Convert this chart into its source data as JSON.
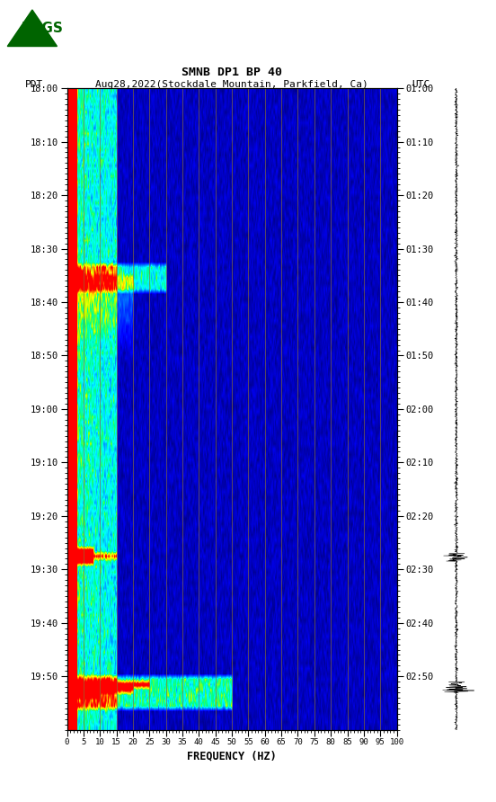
{
  "title_line1": "SMNB DP1 BP 40",
  "title_line2": "PDT   Aug28,2022(Stockdale Mountain, Parkfield, Ca)       UTC",
  "xlabel": "FREQUENCY (HZ)",
  "freq_ticks": [
    0,
    5,
    10,
    15,
    20,
    25,
    30,
    35,
    40,
    45,
    50,
    55,
    60,
    65,
    70,
    75,
    80,
    85,
    90,
    95,
    100
  ],
  "freq_min": 0,
  "freq_max": 100,
  "time_labels_left": [
    "18:00",
    "18:10",
    "18:20",
    "18:30",
    "18:40",
    "18:50",
    "19:00",
    "19:10",
    "19:20",
    "19:30",
    "19:40",
    "19:50"
  ],
  "time_labels_right": [
    "01:00",
    "01:10",
    "01:20",
    "01:30",
    "01:40",
    "01:50",
    "02:00",
    "02:10",
    "02:20",
    "02:30",
    "02:40",
    "02:50"
  ],
  "n_time_steps": 120,
  "n_freq_steps": 500,
  "grid_color": "#8B7030",
  "red_line_color": "#cc0000",
  "fig_width": 5.52,
  "fig_height": 8.92,
  "dpi": 100,
  "t_event1": 35,
  "t_event2": 87,
  "t_event3": 111
}
